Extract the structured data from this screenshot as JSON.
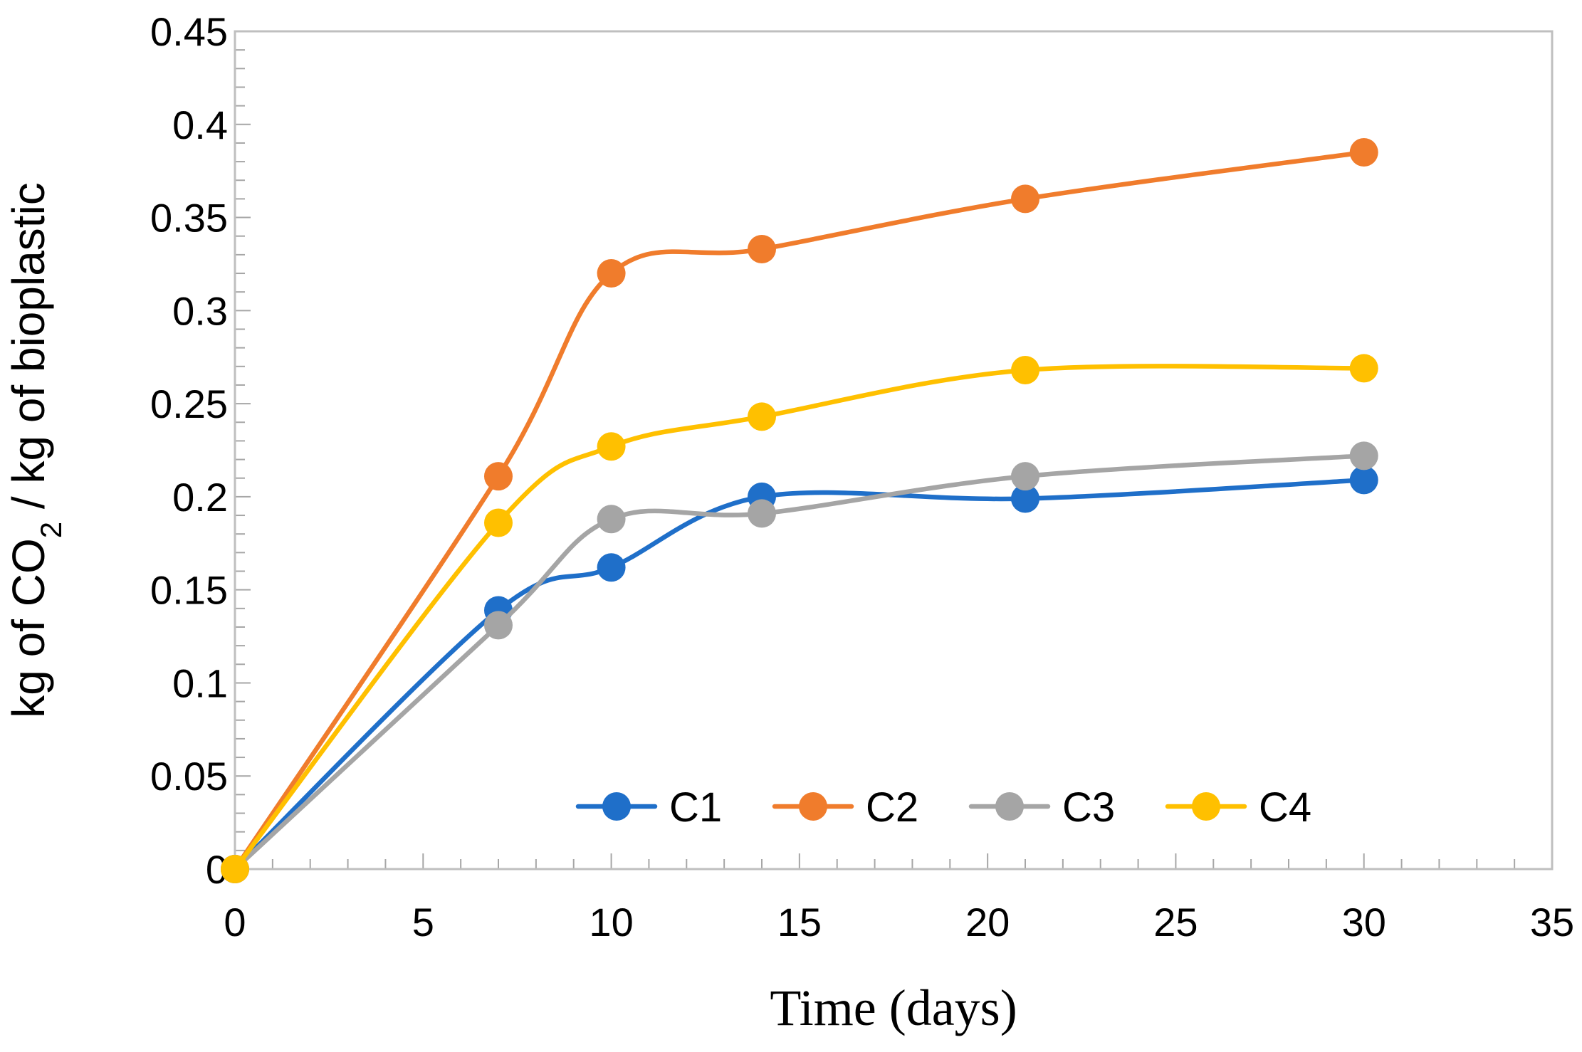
{
  "chart_data": {
    "type": "line",
    "title": "",
    "xlabel": "Time (days)",
    "ylabel": {
      "before": "kg of CO",
      "subscript": "2",
      "after": " / kg of bioplastic"
    },
    "xlim": [
      0,
      35
    ],
    "ylim": [
      0,
      0.45
    ],
    "x_ticks": [
      0,
      5,
      10,
      15,
      20,
      25,
      30,
      35
    ],
    "y_ticks": [
      0,
      0.05,
      0.1,
      0.15,
      0.2,
      0.25,
      0.3,
      0.35,
      0.4,
      0.45
    ],
    "x_tick_labels": [
      "0",
      "5",
      "10",
      "15",
      "20",
      "25",
      "30",
      "35"
    ],
    "y_tick_labels": [
      "0",
      "0.05",
      "0.1",
      "0.15",
      "0.2",
      "0.25",
      "0.3",
      "0.35",
      "0.4",
      "0.45"
    ],
    "grid": false,
    "smooth": true,
    "legend_position": "bottom-center inside plot",
    "x": [
      0,
      7,
      10,
      14,
      21,
      30
    ],
    "series": [
      {
        "name": "C1",
        "color": "#1f6fc9",
        "values": [
          0,
          0.139,
          0.162,
          0.2,
          0.199,
          0.209
        ]
      },
      {
        "name": "C2",
        "color": "#f07c2c",
        "values": [
          0,
          0.211,
          0.32,
          0.333,
          0.36,
          0.385
        ]
      },
      {
        "name": "C3",
        "color": "#a5a5a5",
        "values": [
          0,
          0.131,
          0.188,
          0.191,
          0.211,
          0.222
        ]
      },
      {
        "name": "C4",
        "color": "#ffc000",
        "values": [
          0,
          0.186,
          0.227,
          0.243,
          0.268,
          0.269
        ]
      }
    ]
  }
}
